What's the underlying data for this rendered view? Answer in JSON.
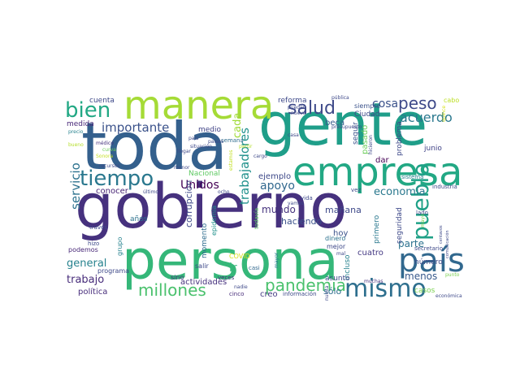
{
  "word_cloud": {
    "words": [
      {
        "text": "gobierno",
        "color": "#46317e"
      },
      {
        "text": "gente",
        "color": "#1f9e89"
      },
      {
        "text": "toda",
        "color": "#34608d"
      },
      {
        "text": "persona",
        "color": "#35b779"
      },
      {
        "text": "manera",
        "color": "#a5db36"
      },
      {
        "text": "empresa",
        "color": "#22a884"
      },
      {
        "text": "país",
        "color": "#31688e"
      },
      {
        "text": "mismo",
        "color": "#2e6f8e"
      },
      {
        "text": "tiempo",
        "color": "#2a788e"
      },
      {
        "text": "bien",
        "color": "#22a884"
      },
      {
        "text": "salud",
        "color": "#3e4a89"
      },
      {
        "text": "pueblo",
        "color": "#1fa187"
      },
      {
        "text": "pandemia",
        "color": "#4ac16d"
      },
      {
        "text": "millones",
        "color": "#4ac16d"
      },
      {
        "text": "peso",
        "color": "#3e4989"
      },
      {
        "text": "acuerdo",
        "color": "#2a788e"
      },
      {
        "text": "importante",
        "color": "#3b528b"
      },
      {
        "text": "servicio",
        "color": "#2c728e"
      },
      {
        "text": "trabajadores",
        "color": "#21918c"
      },
      {
        "text": "Unidos",
        "color": "#440154"
      },
      {
        "text": "apoyo",
        "color": "#31688e"
      },
      {
        "text": "cosa",
        "color": "#3b528b"
      },
      {
        "text": "cada",
        "color": "#a0da39"
      },
      {
        "text": "economía",
        "color": "#2a788e"
      },
      {
        "text": "mundo",
        "color": "#46337e"
      },
      {
        "text": "parte",
        "color": "#2c728e"
      },
      {
        "text": "menos",
        "color": "#38598c"
      },
      {
        "text": "general",
        "color": "#26828e"
      },
      {
        "text": "trabajo",
        "color": "#472c7a"
      },
      {
        "text": "sólo",
        "color": "#2e6e8e"
      },
      {
        "text": "ir",
        "color": "#35b779"
      },
      {
        "text": "creo",
        "color": "#443a83"
      },
      {
        "text": "mañana",
        "color": "#3e4989"
      },
      {
        "text": "haciendo",
        "color": "#3b528b"
      },
      {
        "text": "hoy",
        "color": "#3b528b"
      },
      {
        "text": "casos",
        "color": "#7ad151"
      },
      {
        "text": "ejemplo",
        "color": "#3e4989"
      },
      {
        "text": "corrupción",
        "color": "#3e4989"
      },
      {
        "text": "momento",
        "color": "#2f6c8e"
      },
      {
        "text": "conocer",
        "color": "#482475"
      },
      {
        "text": "actividades",
        "color": "#46327e"
      },
      {
        "text": "política",
        "color": "#472d7b"
      },
      {
        "text": "medida",
        "color": "#482878"
      },
      {
        "text": "cuenta",
        "color": "#3e4989"
      },
      {
        "text": "reforma",
        "color": "#3e4989"
      },
      {
        "text": "beca",
        "color": "#38598c"
      },
      {
        "text": "Ciudad",
        "color": "#3e4989"
      },
      {
        "text": "siempre",
        "color": "#3b528b"
      },
      {
        "text": "seguir",
        "color": "#3b528b"
      },
      {
        "text": "pasado",
        "color": "#6ccd5a"
      },
      {
        "text": "dar",
        "color": "#440154"
      },
      {
        "text": "problema",
        "color": "#3e4989"
      },
      {
        "text": "junio",
        "color": "#414487"
      },
      {
        "text": "seguridad",
        "color": "#3e4989"
      },
      {
        "text": "primero",
        "color": "#2a788e"
      },
      {
        "text": "cuatro",
        "color": "#443983"
      },
      {
        "text": "incluso",
        "color": "#26828e"
      },
      {
        "text": "asunto",
        "color": "#3e4989"
      },
      {
        "text": "número",
        "color": "#3e4989"
      },
      {
        "text": "secretario",
        "color": "#3e4989"
      },
      {
        "text": "industria",
        "color": "#3e4989"
      },
      {
        "text": "Nacional",
        "color": "#5ec962"
      },
      {
        "text": "medio",
        "color": "#414487"
      },
      {
        "text": "semana",
        "color": "#2f6c8e"
      },
      {
        "text": "epidemia",
        "color": "#21918c"
      },
      {
        "text": "grupo",
        "color": "#26828e"
      },
      {
        "text": "años",
        "color": "#2c728e"
      },
      {
        "text": "programa",
        "color": "#3e4989"
      },
      {
        "text": "podemos",
        "color": "#482878"
      },
      {
        "text": "salir",
        "color": "#3e4989"
      },
      {
        "text": "sino",
        "color": "#46327e"
      },
      {
        "text": "COVID",
        "color": "#d8e219"
      },
      {
        "text": "dinero",
        "color": "#2c728e"
      },
      {
        "text": "mejor",
        "color": "#3e4989"
      },
      {
        "text": "todavía",
        "color": "#5ec962"
      },
      {
        "text": "casi",
        "color": "#31688e"
      },
      {
        "text": "mayor",
        "color": "#2a788e"
      },
      {
        "text": "veces",
        "color": "#46327e"
      },
      {
        "text": "nadie",
        "color": "#3e4989"
      },
      {
        "text": "cinco",
        "color": "#472c7a"
      },
      {
        "text": "información",
        "color": "#3e4989"
      },
      {
        "text": "muchas",
        "color": "#46327e"
      },
      {
        "text": "punto",
        "color": "#7ad151"
      },
      {
        "text": "económica",
        "color": "#3e4989"
      },
      {
        "text": "comunicación",
        "color": "#3e4989"
      },
      {
        "text": "centavos",
        "color": "#3e4989"
      },
      {
        "text": "hizo",
        "color": "#3e4989"
      },
      {
        "text": "través",
        "color": "#3e4989"
      },
      {
        "text": "mal",
        "color": "#3e4989"
      },
      {
        "text": "vez",
        "color": "#3e4989"
      },
      {
        "text": "vida",
        "color": "#3e4989"
      },
      {
        "text": "sistema",
        "color": "#26828e"
      },
      {
        "text": "lado",
        "color": "#3e4989"
      },
      {
        "text": "mayo",
        "color": "#7ad151"
      },
      {
        "text": "precio",
        "color": "#26828e"
      },
      {
        "text": "bueno",
        "color": "#b5de2b"
      },
      {
        "text": "médico",
        "color": "#46327e"
      },
      {
        "text": "curva",
        "color": "#6ccd5a"
      },
      {
        "text": "Sonora",
        "color": "#c2df23"
      },
      {
        "text": "recursos",
        "color": "#3e4989"
      },
      {
        "text": "último",
        "color": "#3e4989"
      },
      {
        "text": "situación",
        "color": "#3e4989"
      },
      {
        "text": "ocho",
        "color": "#3e4989"
      },
      {
        "text": "país",
        "color": "#3e4989"
      },
      {
        "text": "países",
        "color": "#3e4989"
      },
      {
        "text": "partir",
        "color": "#b5de2b"
      },
      {
        "text": "casa",
        "color": "#3e4989"
      },
      {
        "text": "pueden",
        "color": "#3e4989"
      },
      {
        "text": "nueva",
        "color": "#3e4989"
      },
      {
        "text": "pública",
        "color": "#3e4989"
      },
      {
        "text": "presupuesto",
        "color": "#3e4989"
      },
      {
        "text": "hicieron",
        "color": "#3e4989"
      },
      {
        "text": "nunca",
        "color": "#3e4989"
      },
      {
        "text": "vamos",
        "color": "#3e4989"
      },
      {
        "text": "cabo",
        "color": "#bddf26"
      },
      {
        "text": "quince",
        "color": "#d8e219"
      },
      {
        "text": "estamos",
        "color": "#c2df23"
      },
      {
        "text": "llegar",
        "color": "#3e4989"
      },
      {
        "text": "cargo",
        "color": "#3e4989"
      },
      {
        "text": "menor",
        "color": "#3e4989"
      }
    ]
  }
}
